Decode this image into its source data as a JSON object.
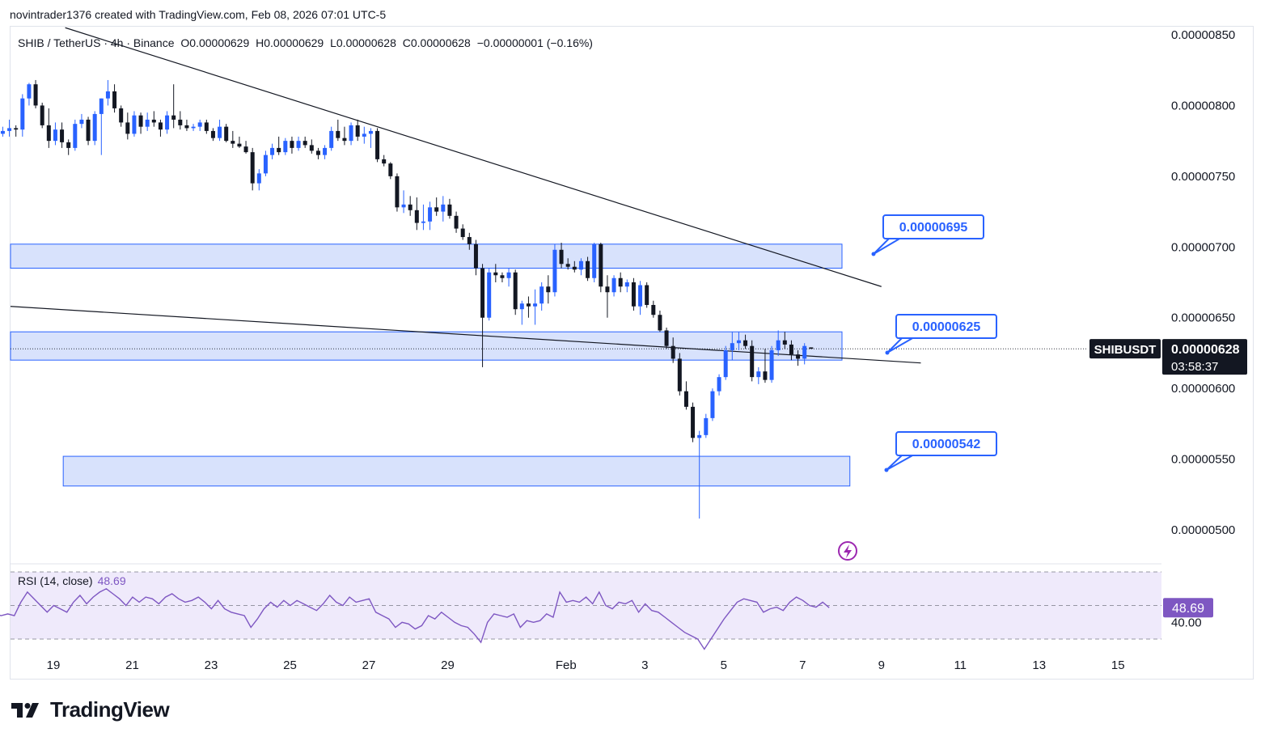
{
  "header": {
    "attribution": "novintrader1376 created with TradingView.com, Feb 08, 2026 07:01 UTC-5"
  },
  "legend": {
    "symbol": "SHIB / TetherUS · 4h · Binance",
    "open": "O0.00000629",
    "high": "H0.00000629",
    "low": "L0.00000628",
    "close": "C0.00000628",
    "change": "−0.00000001 (−0.16%)"
  },
  "price_tag": {
    "symbol": "SHIBUSDT",
    "price": "0.00000628",
    "countdown": "03:58:37"
  },
  "rsi": {
    "label": "RSI (14, close)",
    "value": "48.69",
    "level_label": "40.00"
  },
  "brand": {
    "name": "TradingView"
  },
  "colors": {
    "up": "#2962ff",
    "down": "#131722",
    "zone_fill": "#d1ddfc",
    "zone_border": "#2962ff",
    "rsi_line": "#7e57c2",
    "rsi_band": "#efeafb"
  },
  "chart_data": {
    "type": "candlestick",
    "symbol": "SHIBUSDT",
    "timeframe": "4h",
    "y_axis": {
      "ticks": [
        "0.00000850",
        "0.00000800",
        "0.00000750",
        "0.00000700",
        "0.00000650",
        "0.00000600",
        "0.00000550",
        "0.00000500"
      ],
      "range": [
        4.78e-06,
        8.62e-06
      ]
    },
    "x_axis": {
      "ticks": [
        "19",
        "21",
        "23",
        "25",
        "27",
        "29",
        "Feb",
        "3",
        "5",
        "7",
        "9",
        "11",
        "13",
        "15"
      ]
    },
    "zones": [
      {
        "label": "0.00000695",
        "low": 6.85e-06,
        "high": 7.02e-06,
        "from_day": 17.0,
        "to_day": 39.0
      },
      {
        "label": "0.00000625",
        "low": 6.2e-06,
        "high": 6.4e-06,
        "from_day": 17.0,
        "to_day": 39.0
      },
      {
        "label": "0.00000542",
        "low": 5.31e-06,
        "high": 5.52e-06,
        "from_day": 19.25,
        "to_day": 39.2
      }
    ],
    "trendlines": [
      {
        "from": [
          19.3,
          8.55e-06
        ],
        "to": [
          40.0,
          6.72e-06
        ]
      },
      {
        "from": [
          17.0,
          6.58e-06
        ],
        "to": [
          41.0,
          6.18e-06
        ]
      }
    ],
    "last_price": 6.28e-06,
    "candles": [
      [
        8.4e-06,
        8.42e-06,
        8.38e-06,
        8.41e-06
      ],
      [
        8.41e-06,
        8.45e-06,
        8.4e-06,
        8.42e-06
      ],
      [
        8.42e-06,
        8.43e-06,
        8.05e-06,
        8.08e-06
      ],
      [
        8.08e-06,
        8.12e-06,
        7.45e-06,
        7.8e-06
      ],
      [
        7.8e-06,
        7.85e-06,
        7.78e-06,
        7.82e-06
      ],
      [
        7.82e-06,
        7.9e-06,
        7.78e-06,
        7.84e-06
      ],
      [
        7.84e-06,
        7.86e-06,
        7.78e-06,
        7.83e-06
      ],
      [
        7.83e-06,
        8.08e-06,
        7.78e-06,
        8.05e-06
      ],
      [
        8.05e-06,
        8.16e-06,
        8e-06,
        8.15e-06
      ],
      [
        8.15e-06,
        8.18e-06,
        7.98e-06,
        8e-06
      ],
      [
        8e-06,
        8.02e-06,
        7.84e-06,
        7.86e-06
      ],
      [
        7.86e-06,
        7.98e-06,
        7.7e-06,
        7.75e-06
      ],
      [
        7.75e-06,
        7.88e-06,
        7.72e-06,
        7.83e-06
      ],
      [
        7.83e-06,
        7.88e-06,
        7.7e-06,
        7.74e-06
      ],
      [
        7.74e-06,
        7.76e-06,
        7.65e-06,
        7.7e-06
      ],
      [
        7.7e-06,
        7.9e-06,
        7.68e-06,
        7.87e-06
      ],
      [
        7.87e-06,
        7.94e-06,
        7.84e-06,
        7.9e-06
      ],
      [
        7.9e-06,
        7.92e-06,
        7.72e-06,
        7.75e-06
      ],
      [
        7.75e-06,
        7.96e-06,
        7.72e-06,
        7.94e-06
      ],
      [
        7.94e-06,
        8.05e-06,
        7.65e-06,
        8.05e-06
      ],
      [
        8.05e-06,
        8.18e-06,
        8e-06,
        8.1e-06
      ],
      [
        8.1e-06,
        8.15e-06,
        7.95e-06,
        7.98e-06
      ],
      [
        7.98e-06,
        8e-06,
        7.85e-06,
        7.88e-06
      ],
      [
        7.88e-06,
        7.95e-06,
        7.76e-06,
        7.8e-06
      ],
      [
        7.8e-06,
        7.96e-06,
        7.78e-06,
        7.93e-06
      ],
      [
        7.93e-06,
        7.95e-06,
        7.8e-06,
        7.85e-06
      ],
      [
        7.85e-06,
        7.95e-06,
        7.82e-06,
        7.9e-06
      ],
      [
        7.9e-06,
        7.96e-06,
        7.85e-06,
        7.88e-06
      ],
      [
        7.88e-06,
        7.9e-06,
        7.78e-06,
        7.83e-06
      ],
      [
        7.83e-06,
        7.96e-06,
        7.8e-06,
        7.93e-06
      ],
      [
        7.93e-06,
        8.15e-06,
        7.84e-06,
        7.9e-06
      ],
      [
        7.9e-06,
        7.96e-06,
        7.83e-06,
        7.86e-06
      ],
      [
        7.86e-06,
        7.9e-06,
        7.82e-06,
        7.84e-06
      ],
      [
        7.84e-06,
        7.87e-06,
        7.82e-06,
        7.85e-06
      ],
      [
        7.85e-06,
        7.9e-06,
        7.82e-06,
        7.88e-06
      ],
      [
        7.88e-06,
        7.9e-06,
        7.8e-06,
        7.82e-06
      ],
      [
        7.82e-06,
        7.84e-06,
        7.75e-06,
        7.77e-06
      ],
      [
        7.77e-06,
        7.9e-06,
        7.75e-06,
        7.85e-06
      ],
      [
        7.85e-06,
        7.87e-06,
        7.74e-06,
        7.75e-06
      ],
      [
        7.75e-06,
        7.82e-06,
        7.7e-06,
        7.73e-06
      ],
      [
        7.73e-06,
        7.78e-06,
        7.7e-06,
        7.71e-06
      ],
      [
        7.71e-06,
        7.75e-06,
        7.66e-06,
        7.67e-06
      ],
      [
        7.67e-06,
        7.7e-06,
        7.4e-06,
        7.45e-06
      ],
      [
        7.45e-06,
        7.55e-06,
        7.4e-06,
        7.52e-06
      ],
      [
        7.52e-06,
        7.68e-06,
        7.5e-06,
        7.65e-06
      ],
      [
        7.65e-06,
        7.73e-06,
        7.62e-06,
        7.7e-06
      ],
      [
        7.7e-06,
        7.78e-06,
        7.65e-06,
        7.67e-06
      ],
      [
        7.67e-06,
        7.77e-06,
        7.65e-06,
        7.75e-06
      ],
      [
        7.75e-06,
        7.78e-06,
        7.66e-06,
        7.7e-06
      ],
      [
        7.7e-06,
        7.78e-06,
        7.68e-06,
        7.75e-06
      ],
      [
        7.75e-06,
        7.78e-06,
        7.7e-06,
        7.72e-06
      ],
      [
        7.72e-06,
        7.76e-06,
        7.66e-06,
        7.68e-06
      ],
      [
        7.68e-06,
        7.7e-06,
        7.62e-06,
        7.65e-06
      ],
      [
        7.65e-06,
        7.72e-06,
        7.62e-06,
        7.7e-06
      ],
      [
        7.7e-06,
        7.85e-06,
        7.68e-06,
        7.82e-06
      ],
      [
        7.82e-06,
        7.9e-06,
        7.75e-06,
        7.77e-06
      ],
      [
        7.77e-06,
        7.85e-06,
        7.72e-06,
        7.75e-06
      ],
      [
        7.75e-06,
        7.88e-06,
        7.72e-06,
        7.86e-06
      ],
      [
        7.86e-06,
        7.9e-06,
        7.75e-06,
        7.78e-06
      ],
      [
        7.78e-06,
        7.85e-06,
        7.73e-06,
        7.8e-06
      ],
      [
        7.8e-06,
        7.84e-06,
        7.7e-06,
        7.82e-06
      ],
      [
        7.82e-06,
        7.84e-06,
        7.6e-06,
        7.62e-06
      ],
      [
        7.62e-06,
        7.65e-06,
        7.57e-06,
        7.59e-06
      ],
      [
        7.59e-06,
        7.6e-06,
        7.48e-06,
        7.5e-06
      ],
      [
        7.5e-06,
        7.52e-06,
        7.25e-06,
        7.28e-06
      ],
      [
        7.28e-06,
        7.4e-06,
        7.24e-06,
        7.3e-06
      ],
      [
        7.3e-06,
        7.36e-06,
        7.22e-06,
        7.26e-06
      ],
      [
        7.26e-06,
        7.35e-06,
        7.12e-06,
        7.17e-06
      ],
      [
        7.17e-06,
        7.3e-06,
        7.12e-06,
        7.18e-06
      ],
      [
        7.18e-06,
        7.32e-06,
        7.12e-06,
        7.28e-06
      ],
      [
        7.28e-06,
        7.35e-06,
        7.22e-06,
        7.25e-06
      ],
      [
        7.25e-06,
        7.36e-06,
        7.18e-06,
        7.3e-06
      ],
      [
        7.3e-06,
        7.34e-06,
        7.2e-06,
        7.22e-06
      ],
      [
        7.22e-06,
        7.25e-06,
        7.1e-06,
        7.13e-06
      ],
      [
        7.13e-06,
        7.16e-06,
        7.05e-06,
        7.07e-06
      ],
      [
        7.07e-06,
        7.1e-06,
        6.98e-06,
        7.02e-06
      ],
      [
        7.02e-06,
        7.05e-06,
        6.8e-06,
        6.85e-06
      ],
      [
        6.85e-06,
        6.88e-06,
        6.15e-06,
        6.5e-06
      ],
      [
        6.5e-06,
        6.85e-06,
        6.48e-06,
        6.82e-06
      ],
      [
        6.82e-06,
        6.88e-06,
        6.75e-06,
        6.8e-06
      ],
      [
        6.8e-06,
        6.82e-06,
        6.75e-06,
        6.78e-06
      ],
      [
        6.78e-06,
        6.85e-06,
        6.72e-06,
        6.82e-06
      ],
      [
        6.82e-06,
        6.84e-06,
        6.52e-06,
        6.56e-06
      ],
      [
        6.56e-06,
        6.62e-06,
        6.45e-06,
        6.6e-06
      ],
      [
        6.6e-06,
        6.65e-06,
        6.5e-06,
        6.58e-06
      ],
      [
        6.58e-06,
        6.7e-06,
        6.45e-06,
        6.6e-06
      ],
      [
        6.6e-06,
        6.75e-06,
        6.55e-06,
        6.72e-06
      ],
      [
        6.72e-06,
        6.8e-06,
        6.6e-06,
        6.68e-06
      ],
      [
        6.68e-06,
        7.02e-06,
        6.65e-06,
        6.98e-06
      ],
      [
        6.98e-06,
        7.03e-06,
        6.85e-06,
        6.88e-06
      ],
      [
        6.88e-06,
        6.92e-06,
        6.84e-06,
        6.86e-06
      ],
      [
        6.86e-06,
        6.9e-06,
        6.82e-06,
        6.84e-06
      ],
      [
        6.84e-06,
        6.92e-06,
        6.8e-06,
        6.9e-06
      ],
      [
        6.9e-06,
        6.93e-06,
        6.76e-06,
        6.78e-06
      ],
      [
        6.78e-06,
        7.03e-06,
        6.75e-06,
        7.02e-06
      ],
      [
        7.02e-06,
        7.03e-06,
        6.68e-06,
        6.72e-06
      ],
      [
        6.72e-06,
        6.8e-06,
        6.5e-06,
        6.68e-06
      ],
      [
        6.68e-06,
        6.8e-06,
        6.65e-06,
        6.78e-06
      ],
      [
        6.78e-06,
        6.82e-06,
        6.68e-06,
        6.72e-06
      ],
      [
        6.72e-06,
        6.77e-06,
        6.68e-06,
        6.75e-06
      ],
      [
        6.75e-06,
        6.78e-06,
        6.55e-06,
        6.58e-06
      ],
      [
        6.58e-06,
        6.76e-06,
        6.52e-06,
        6.73e-06
      ],
      [
        6.73e-06,
        6.75e-06,
        6.57e-06,
        6.59e-06
      ],
      [
        6.59e-06,
        6.62e-06,
        6.5e-06,
        6.52e-06
      ],
      [
        6.52e-06,
        6.55e-06,
        6.4e-06,
        6.41e-06
      ],
      [
        6.41e-06,
        6.43e-06,
        6.28e-06,
        6.3e-06
      ],
      [
        6.3e-06,
        6.36e-06,
        6.18e-06,
        6.21e-06
      ],
      [
        6.21e-06,
        6.25e-06,
        5.95e-06,
        5.98e-06
      ],
      [
        5.98e-06,
        6.05e-06,
        5.85e-06,
        5.87e-06
      ],
      [
        5.87e-06,
        5.9e-06,
        5.62e-06,
        5.65e-06
      ],
      [
        5.65e-06,
        5.7e-06,
        5.08e-06,
        5.67e-06
      ],
      [
        5.67e-06,
        5.82e-06,
        5.65e-06,
        5.79e-06
      ],
      [
        5.79e-06,
        6e-06,
        5.77e-06,
        5.98e-06
      ],
      [
        5.98e-06,
        6.1e-06,
        5.95e-06,
        6.08e-06
      ],
      [
        6.08e-06,
        6.3e-06,
        6.06e-06,
        6.27e-06
      ],
      [
        6.27e-06,
        6.4e-06,
        6.2e-06,
        6.32e-06
      ],
      [
        6.32e-06,
        6.4e-06,
        6.27e-06,
        6.34e-06
      ],
      [
        6.34e-06,
        6.38e-06,
        6.28e-06,
        6.3e-06
      ],
      [
        6.3e-06,
        6.34e-06,
        6.05e-06,
        6.08e-06
      ],
      [
        6.08e-06,
        6.15e-06,
        6.03e-06,
        6.12e-06
      ],
      [
        6.12e-06,
        6.28e-06,
        6.04e-06,
        6.06e-06
      ],
      [
        6.06e-06,
        6.3e-06,
        6.04e-06,
        6.27e-06
      ],
      [
        6.27e-06,
        6.41e-06,
        6.23e-06,
        6.34e-06
      ],
      [
        6.34e-06,
        6.4e-06,
        6.28e-06,
        6.31e-06
      ],
      [
        6.31e-06,
        6.34e-06,
        6.2e-06,
        6.24e-06
      ],
      [
        6.24e-06,
        6.27e-06,
        6.16e-06,
        6.21e-06
      ],
      [
        6.21e-06,
        6.32e-06,
        6.17e-06,
        6.3e-06
      ],
      [
        6.29e-06,
        6.29e-06,
        6.28e-06,
        6.28e-06
      ]
    ],
    "rsi_series": [
      58,
      58,
      50,
      45,
      44,
      45,
      44,
      52,
      58,
      54,
      50,
      46,
      50,
      48,
      46,
      52,
      56,
      51,
      55,
      58,
      60,
      57,
      54,
      50,
      55,
      52,
      55,
      54,
      51,
      55,
      57,
      54,
      52,
      53,
      55,
      52,
      48,
      53,
      48,
      46,
      45,
      44,
      37,
      42,
      48,
      52,
      49,
      53,
      50,
      53,
      51,
      49,
      47,
      51,
      56,
      52,
      50,
      55,
      52,
      53,
      54,
      46,
      44,
      42,
      37,
      40,
      39,
      36,
      38,
      44,
      42,
      46,
      43,
      40,
      38,
      37,
      33,
      28,
      40,
      45,
      44,
      43,
      45,
      37,
      41,
      40,
      41,
      45,
      43,
      58,
      52,
      53,
      52,
      55,
      51,
      58,
      50,
      48,
      52,
      51,
      53,
      46,
      51,
      47,
      46,
      43,
      40,
      37,
      34,
      32,
      30,
      24,
      30,
      36,
      42,
      47,
      52,
      54,
      53,
      52,
      46,
      48,
      49,
      47,
      52,
      55,
      53,
      50,
      49,
      52,
      48.69
    ]
  }
}
